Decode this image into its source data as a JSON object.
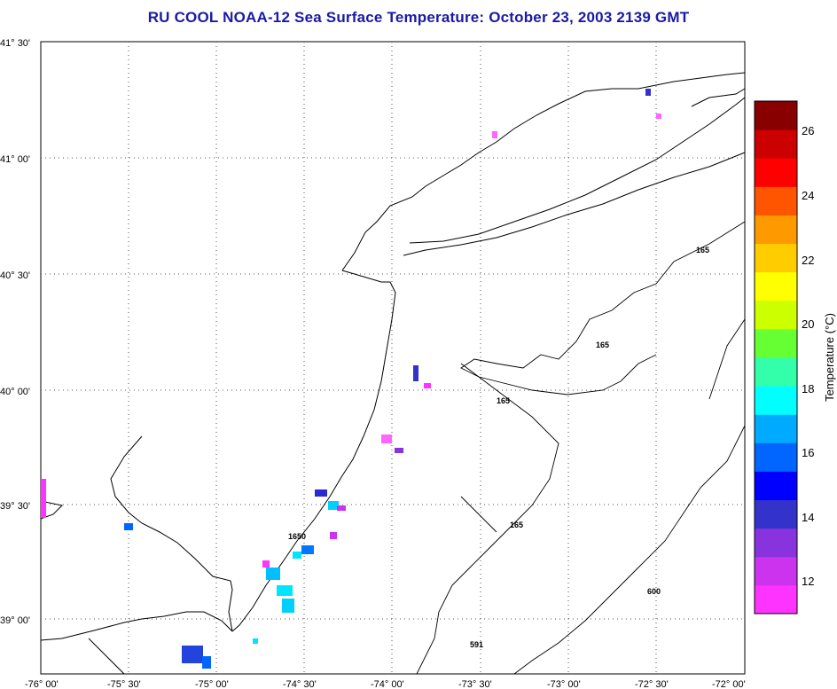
{
  "title": "RU COOL  NOAA-12  Sea Surface Temperature:  October 23, 2003 2139 GMT",
  "lat_labels": [
    "41° 30'",
    "41° 00'",
    "40° 30'",
    "40° 00'",
    "39° 30'",
    "39° 00'"
  ],
  "lon_labels": [
    "-76° 00'",
    "-75° 30'",
    "-75° 00'",
    "-74° 30'",
    "-74° 00'",
    "-73° 30'",
    "-73° 00'",
    "-72° 30'",
    "-72° 00'"
  ],
  "contour_labels": [
    "165",
    "165",
    "165",
    "165",
    "1650",
    "600",
    "591"
  ],
  "colorbar": {
    "label": "Temperature (°C)",
    "ticks": [
      "26",
      "24",
      "22",
      "20",
      "18",
      "16",
      "14",
      "12"
    ],
    "colors": [
      "#ff33ff",
      "#cc33ee",
      "#8833dd",
      "#3333cc",
      "#0000ff",
      "#0066ff",
      "#00aaff",
      "#00ffff",
      "#33ffaa",
      "#66ff33",
      "#ccff00",
      "#ffff00",
      "#ffcc00",
      "#ff9900",
      "#ff5500",
      "#ff0000",
      "#cc0000",
      "#880000"
    ]
  }
}
